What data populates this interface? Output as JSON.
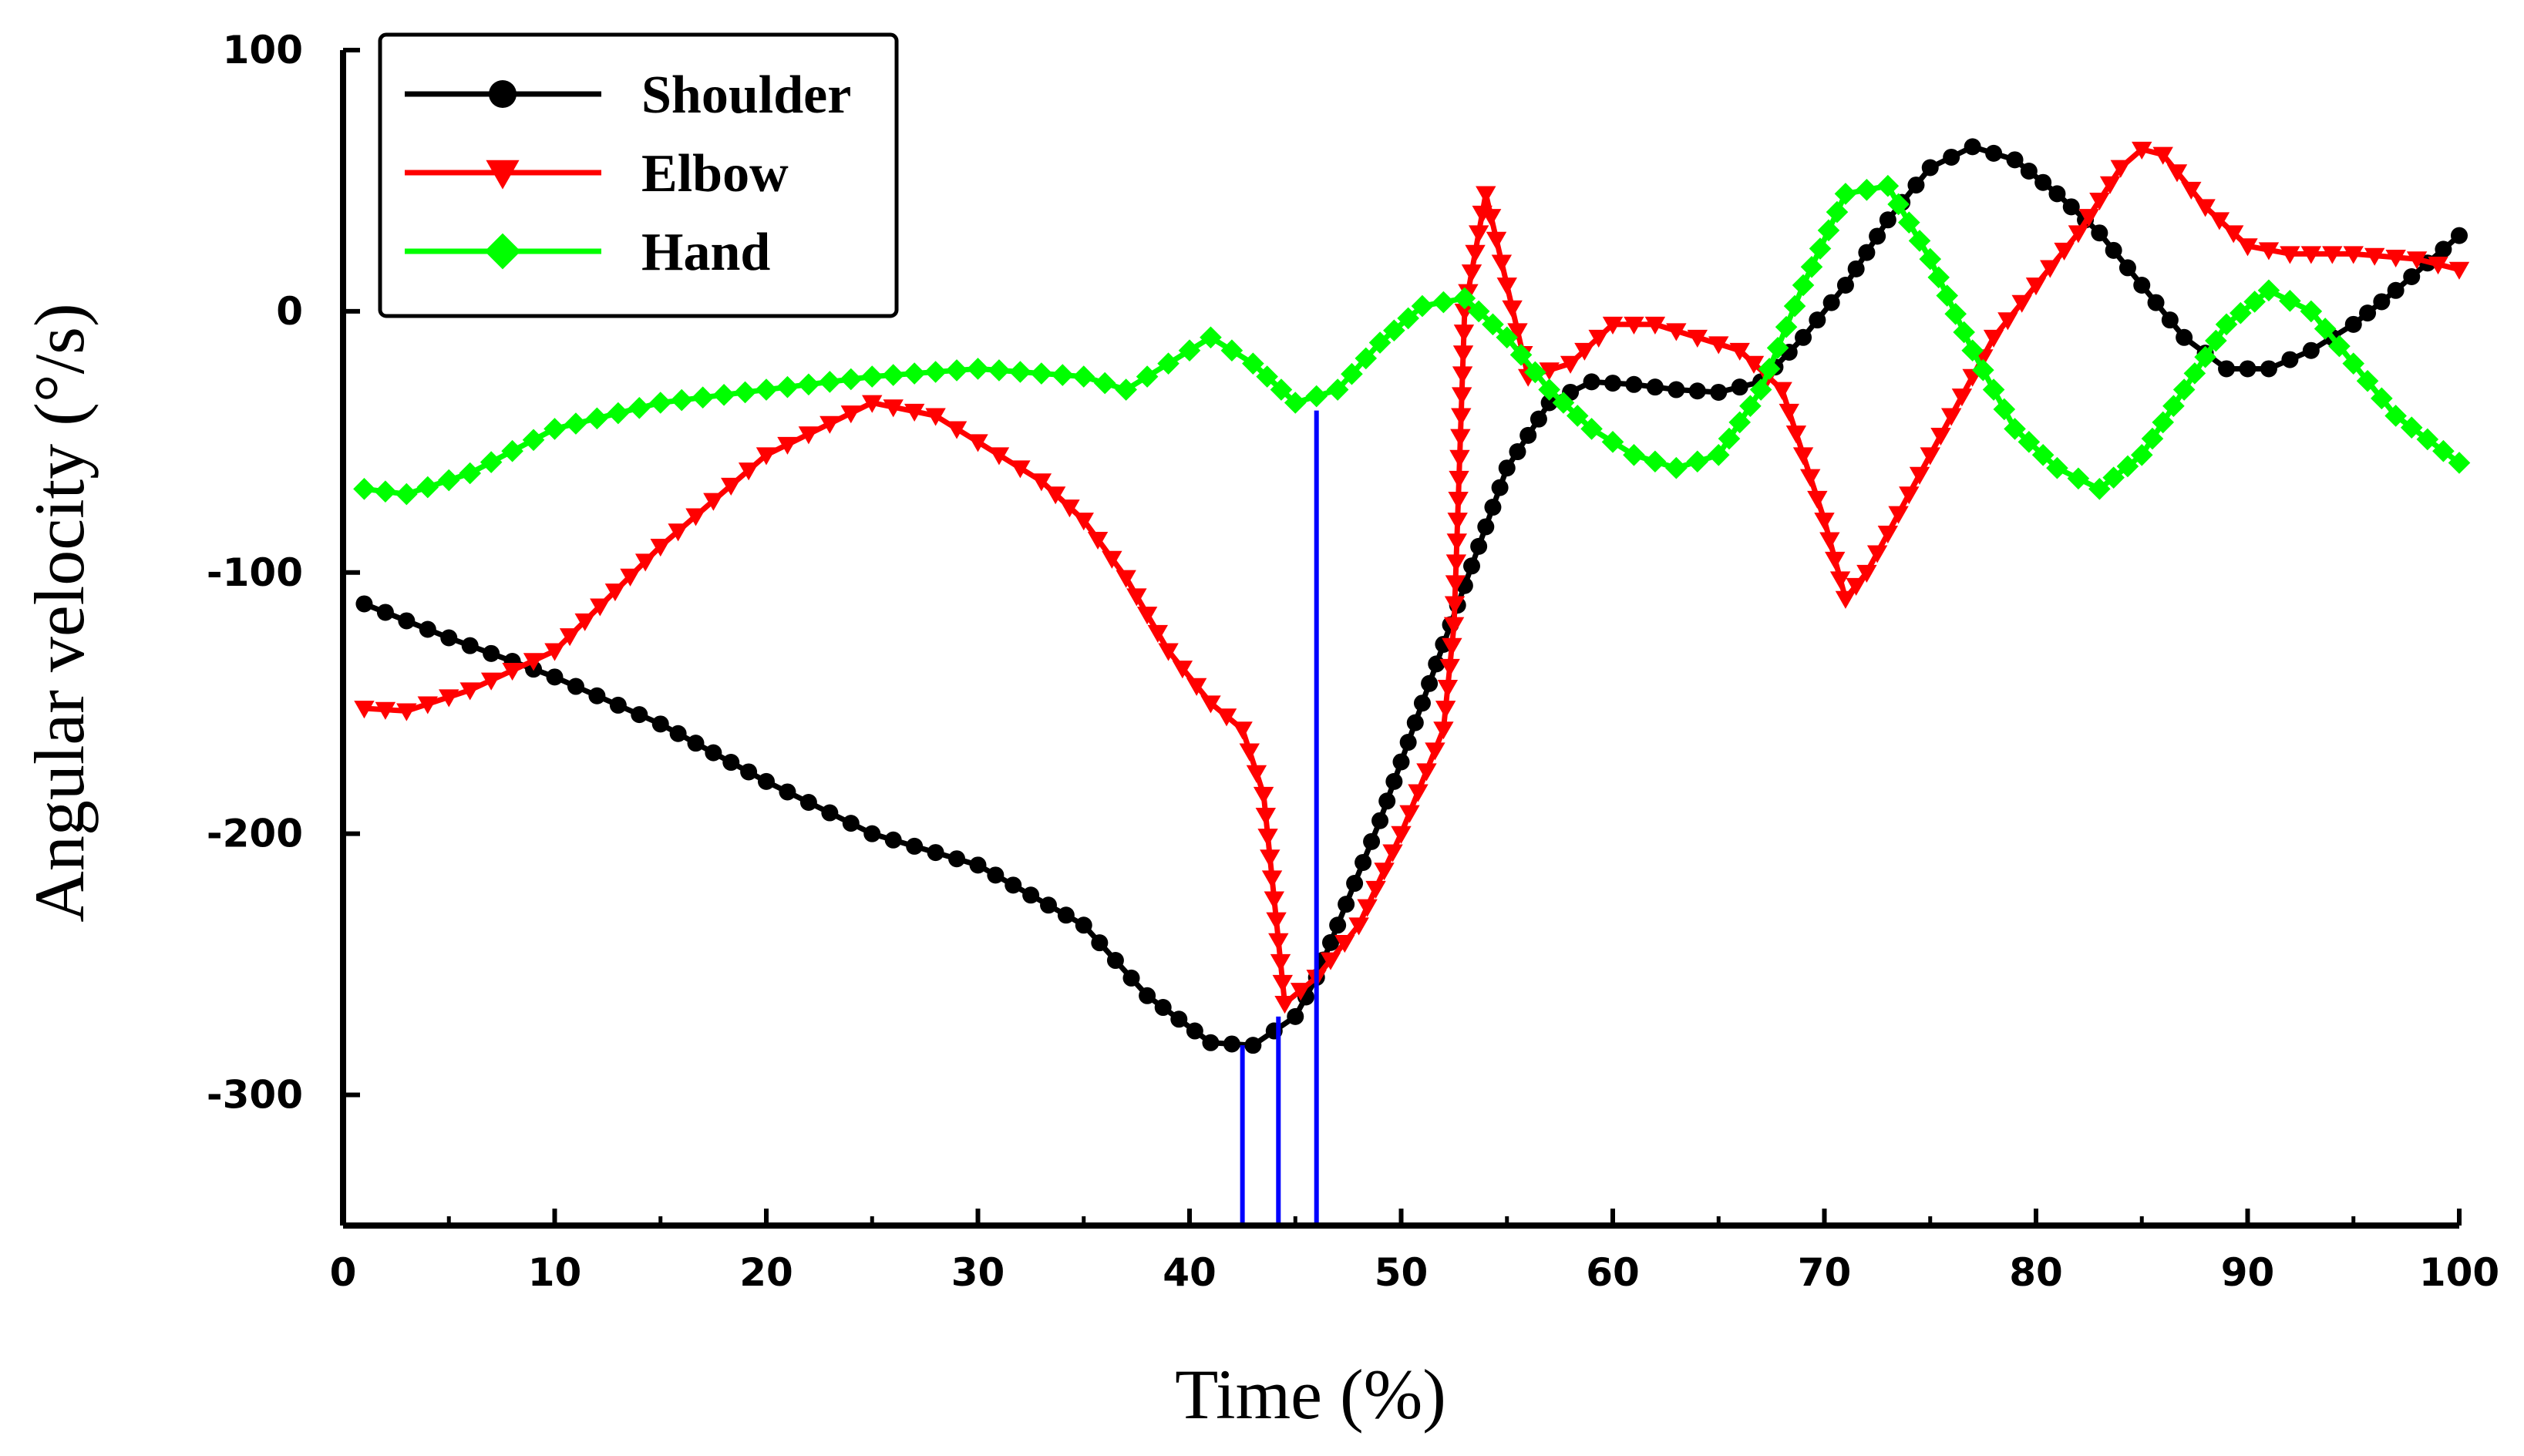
{
  "chart_data": {
    "type": "line",
    "title": "",
    "xlabel": "Time (%)",
    "ylabel": "Angular velocity (°/s)",
    "xlim": [
      0,
      100
    ],
    "ylim": [
      -350,
      100
    ],
    "xticks": [
      0,
      10,
      20,
      30,
      40,
      50,
      60,
      70,
      80,
      90,
      100
    ],
    "yticks": [
      100,
      0,
      -100,
      -200,
      -300
    ],
    "x_tick_labels": [
      "0",
      "10",
      "20",
      "30",
      "40",
      "50",
      "60",
      "70",
      "80",
      "90",
      "100"
    ],
    "y_tick_labels": [
      "100",
      "0",
      "-100",
      "-200",
      "-300"
    ],
    "grid": false,
    "legend_position": "top-left",
    "series": [
      {
        "name": "Shoulder",
        "color": "#000000",
        "marker": "circle",
        "x": [
          1,
          5,
          10,
          15,
          20,
          25,
          30,
          35,
          38,
          41,
          43,
          45,
          46,
          47,
          49,
          51,
          53,
          55,
          57,
          59,
          61,
          63,
          65,
          67,
          69,
          71,
          73,
          75,
          77,
          79,
          81,
          83,
          85,
          87,
          89,
          91,
          93,
          95,
          97,
          100
        ],
        "y": [
          -112,
          -125,
          -140,
          -158,
          -180,
          -200,
          -212,
          -235,
          -262,
          -280,
          -281,
          -270,
          -255,
          -235,
          -195,
          -150,
          -105,
          -60,
          -35,
          -27,
          -28,
          -30,
          -31,
          -27,
          -10,
          10,
          35,
          55,
          63,
          58,
          45,
          30,
          10,
          -10,
          -22,
          -22,
          -15,
          -5,
          8,
          29
        ]
      },
      {
        "name": "Elbow",
        "color": "#ff0000",
        "marker": "triangle-down",
        "x": [
          1,
          3,
          6,
          10,
          15,
          20,
          25,
          28,
          30,
          33,
          35,
          37,
          39,
          41,
          42.5,
          43.5,
          44.5,
          46,
          48,
          50,
          52,
          52.5,
          53,
          54,
          55,
          56,
          58,
          60,
          62,
          64,
          66,
          68,
          70,
          71,
          72,
          74,
          76,
          78,
          80,
          82,
          84,
          85,
          86,
          88,
          90,
          92,
          95,
          98,
          100
        ],
        "y": [
          -152,
          -153,
          -145,
          -130,
          -90,
          -55,
          -35,
          -40,
          -50,
          -65,
          -80,
          -102,
          -130,
          -150,
          -160,
          -185,
          -265,
          -255,
          -235,
          -200,
          -160,
          -120,
          0,
          45,
          10,
          -25,
          -20,
          -5,
          -5,
          -10,
          -15,
          -30,
          -80,
          -110,
          -100,
          -70,
          -40,
          -10,
          10,
          30,
          55,
          62,
          60,
          40,
          25,
          22,
          22,
          20,
          16
        ]
      },
      {
        "name": "Hand",
        "color": "#00ff00",
        "marker": "diamond",
        "x": [
          1,
          3,
          6,
          10,
          15,
          20,
          25,
          30,
          35,
          37,
          39,
          41,
          43,
          45,
          47,
          49,
          51,
          53,
          55,
          57,
          59,
          61,
          63,
          65,
          67,
          69,
          71,
          73,
          75,
          77,
          79,
          81,
          83,
          85,
          87,
          89,
          91,
          93,
          95,
          97,
          100
        ],
        "y": [
          -68,
          -70,
          -62,
          -45,
          -35,
          -30,
          -25,
          -22,
          -25,
          -30,
          -20,
          -10,
          -20,
          -35,
          -30,
          -12,
          2,
          5,
          -10,
          -30,
          -45,
          -55,
          -60,
          -55,
          -30,
          10,
          45,
          48,
          20,
          -15,
          -45,
          -60,
          -68,
          -55,
          -30,
          -5,
          8,
          0,
          -20,
          -40,
          -58
        ]
      }
    ],
    "annotations": [
      {
        "type": "vertical-line",
        "color": "#0000ff",
        "x": 42.5,
        "y_top": -281
      },
      {
        "type": "vertical-line",
        "color": "#0000ff",
        "x": 44.2,
        "y_top": -270
      },
      {
        "type": "vertical-line",
        "color": "#0000ff",
        "x": 46,
        "y_top": -38
      }
    ]
  }
}
